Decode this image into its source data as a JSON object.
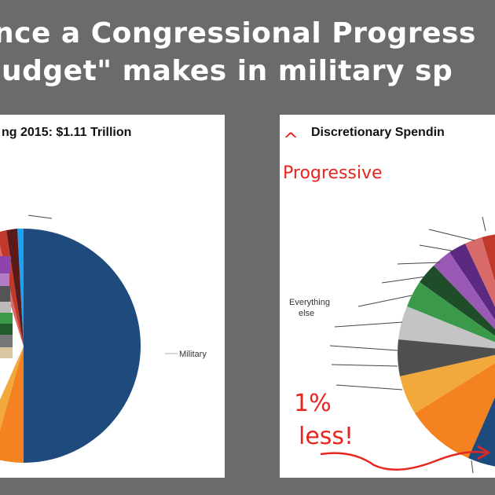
{
  "headline": {
    "line1": "nce a Congressional Progress",
    "line2": "udget\" makes in military sp"
  },
  "chart_data": [
    {
      "type": "pie",
      "title": "ng 2015: $1.11 Trillion",
      "slice_labels": {
        "military": "Military"
      },
      "colors": {
        "military": "#1e4b7c",
        "orange": "#f58220",
        "accent": "#1da1f2"
      }
    },
    {
      "type": "pie",
      "title": "Discretionary Spendin",
      "slice_labels": {
        "everything_else": "Everything else"
      },
      "annotations": {
        "caret": "^",
        "progressive": "Progressive",
        "less_line1": "1%",
        "less_line2": "less!"
      },
      "colors": {
        "annotation": "#e8261f"
      }
    }
  ]
}
